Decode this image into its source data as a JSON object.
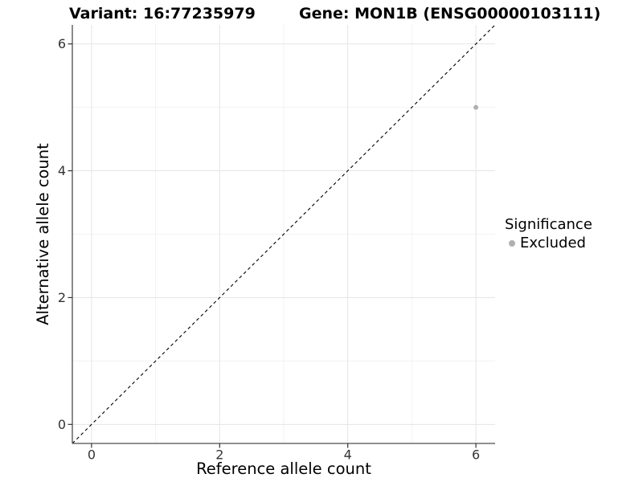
{
  "header": {
    "variant_title": "Variant: 16:77235979",
    "gene_title": "Gene: MON1B (ENSG00000103111)"
  },
  "chart_data": {
    "type": "scatter",
    "xlabel": "Reference allele count",
    "ylabel": "Alternative allele count",
    "xlim": [
      -0.3,
      6.3
    ],
    "ylim": [
      -0.3,
      6.3
    ],
    "x_ticks": [
      0,
      2,
      4,
      6
    ],
    "y_ticks": [
      0,
      2,
      4,
      6
    ],
    "x_minor_ticks": [
      1,
      3,
      5
    ],
    "y_minor_ticks": [
      1,
      3,
      5
    ],
    "grid": "on",
    "identity_line": {
      "style": "dashed",
      "color": "#000000",
      "from": -0.3,
      "to": 6.3
    },
    "series": [
      {
        "name": "Excluded",
        "color": "#b0b0b0",
        "points": [
          {
            "x": 6,
            "y": 5
          }
        ]
      }
    ],
    "legend": {
      "title": "Significance",
      "position": "right",
      "items": [
        {
          "label": "Excluded",
          "color": "#b0b0b0",
          "marker": "circle"
        }
      ]
    }
  },
  "colors": {
    "background": "#ffffff",
    "grid_major": "#e5e5e5",
    "grid_minor": "#f2f2f2",
    "axis_line": "#4d4d4d",
    "tick_mark": "#333333",
    "tick_label": "#333333",
    "point": "#b0b0b0"
  }
}
